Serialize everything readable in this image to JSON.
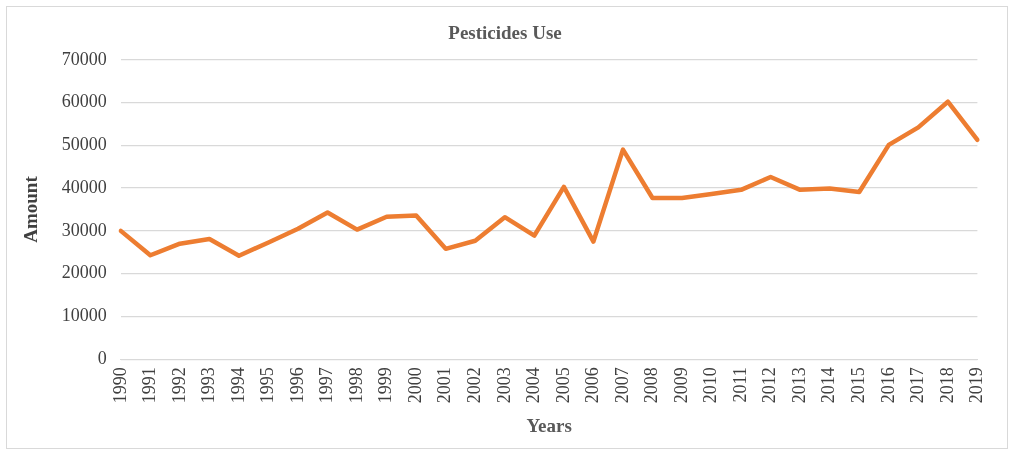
{
  "chart_data": {
    "type": "line",
    "title": "Pesticides Use",
    "xlabel": "Years",
    "ylabel": "Amount",
    "categories": [
      "1990",
      "1991",
      "1992",
      "1993",
      "1994",
      "1995",
      "1996",
      "1997",
      "1998",
      "1999",
      "2000",
      "2001",
      "2002",
      "2003",
      "2004",
      "2005",
      "2006",
      "2007",
      "2008",
      "2009",
      "2010",
      "2011",
      "2012",
      "2013",
      "2014",
      "2015",
      "2016",
      "2017",
      "2018",
      "2019"
    ],
    "series": [
      {
        "color": "#ed7d31",
        "values": [
          30000,
          24300,
          27000,
          28100,
          24200,
          27300,
          30500,
          34300,
          30300,
          33300,
          33600,
          25800,
          27700,
          33200,
          28900,
          40300,
          27500,
          49000,
          37700,
          37700,
          38600,
          39600,
          42600,
          39600,
          39900,
          39100,
          50100,
          54200,
          60200,
          51300
        ]
      }
    ],
    "ylim": [
      0,
      70000
    ],
    "yticks": [
      0,
      10000,
      20000,
      30000,
      40000,
      50000,
      60000,
      70000
    ],
    "grid": "y",
    "legend": false,
    "marker": "none",
    "line_style": "solid"
  }
}
